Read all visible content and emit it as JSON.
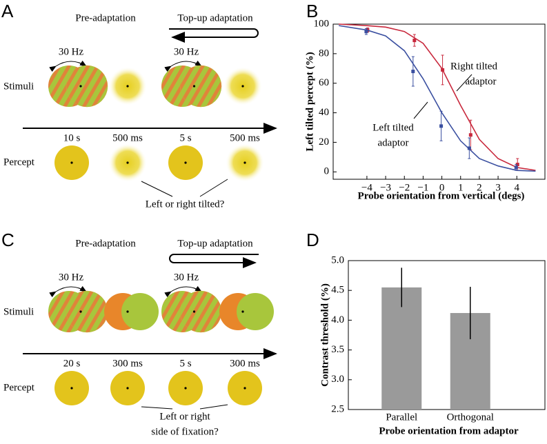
{
  "panels": [
    "A",
    "B",
    "C",
    "D"
  ],
  "diagrams": [
    {
      "phases": [
        "Pre-adaptation",
        "Top-up adaptation"
      ],
      "rate": [
        "30 Hz",
        "30 Hz"
      ],
      "rows": [
        "Stimuli",
        "Percept"
      ],
      "durations": [
        "10 s",
        "500 ms",
        "5 s",
        "500 ms"
      ],
      "question": [
        "Left or right tilted?"
      ]
    },
    {
      "phases": [
        "Pre-adaptation",
        "Top-up adaptation"
      ],
      "rate": [
        "30 Hz",
        "30 Hz"
      ],
      "rows": [
        "Stimuli",
        "Percept"
      ],
      "durations": [
        "20 s",
        "300 ms",
        "5 s",
        "300 ms"
      ],
      "question": [
        "Left or right",
        "side of fixation?"
      ]
    }
  ],
  "chart_data": [
    {
      "type": "line",
      "xlabel": "Probe orientation from vertical (degs)",
      "ylabel": "Left tilted percept (%)",
      "xlim": [
        -5.8,
        5.5
      ],
      "ylim": [
        -5,
        100
      ],
      "xticks": [
        {
          "value": -4,
          "label": "−4"
        },
        {
          "value": -3,
          "label": "−3"
        },
        {
          "value": -2,
          "label": "−2"
        },
        {
          "value": -1,
          "label": "−1"
        },
        0,
        1,
        2,
        3,
        4
      ],
      "yticks": [
        0,
        20,
        40,
        60,
        80,
        100
      ],
      "series": [
        {
          "color": "#c8283c",
          "x": [
            -4,
            -1.5,
            0,
            1.5,
            4
          ],
          "values": [
            96,
            89,
            69,
            25,
            5
          ],
          "errors": [
            1.5,
            4,
            10,
            10,
            4
          ],
          "fit_x": [
            -5.5,
            -4,
            -3,
            -2,
            -1,
            0,
            1,
            2,
            3,
            4,
            5
          ],
          "fit_values": [
            100,
            99,
            98,
            95,
            87,
            70,
            45,
            22,
            9,
            3,
            1
          ]
        },
        {
          "color": "#3a4fa0",
          "x": [
            -4,
            -1.5,
            0,
            1.5,
            4
          ],
          "values": [
            95,
            68,
            31,
            16,
            3
          ],
          "errors": [
            2,
            10,
            10,
            7,
            2
          ],
          "fit_x": [
            -5.5,
            -4,
            -3,
            -2,
            -1,
            0,
            1,
            2,
            3,
            4,
            5
          ],
          "fit_values": [
            99,
            96,
            92,
            82,
            63,
            40,
            21,
            9,
            4,
            1,
            0.5
          ]
        }
      ],
      "annotations": [
        [
          "Right tilted",
          "adaptor"
        ],
        [
          "Left tilted",
          "adaptor"
        ]
      ]
    },
    {
      "type": "bar",
      "xlabel": "Probe orientation from adaptor",
      "ylabel": "Contrast threshold (%)",
      "categories": [
        "Parallel",
        "Orthogonal"
      ],
      "values": [
        4.55,
        4.12
      ],
      "errors": [
        0.33,
        0.44
      ],
      "color": "#9a9a9a",
      "ylim": [
        2.5,
        5.0
      ],
      "yticks": [
        2.5,
        {
          "value": 3,
          "label": "3.0"
        },
        3.5,
        {
          "value": 4,
          "label": "4.0"
        },
        4.5,
        {
          "value": 5,
          "label": "5.0"
        }
      ]
    }
  ]
}
